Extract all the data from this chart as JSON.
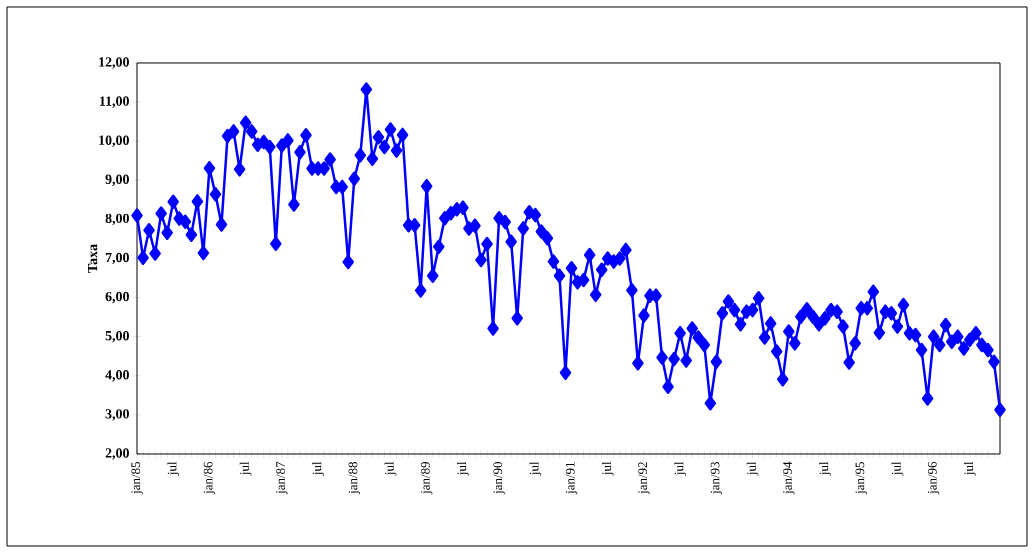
{
  "chart_data": {
    "type": "line",
    "ylabel": "Taxa",
    "color": "#0000ff",
    "marker": "diamond",
    "line_style": "solid",
    "grid": false,
    "ylim": [
      2,
      12
    ],
    "yticks": [
      {
        "value": 2,
        "label": "2,00"
      },
      {
        "value": 3,
        "label": "3,00"
      },
      {
        "value": 4,
        "label": "4,00"
      },
      {
        "value": 5,
        "label": "5,00"
      },
      {
        "value": 6,
        "label": "6,00"
      },
      {
        "value": 7,
        "label": "7,00"
      },
      {
        "value": 8,
        "label": "8,00"
      },
      {
        "value": 9,
        "label": "9,00"
      },
      {
        "value": 10,
        "label": "10,00"
      },
      {
        "value": 11,
        "label": "11,00"
      },
      {
        "value": 12,
        "label": "12,00"
      }
    ],
    "categories": [
      "jan/85",
      null,
      null,
      null,
      null,
      null,
      "jul",
      null,
      null,
      null,
      null,
      null,
      "jan/86",
      null,
      null,
      null,
      null,
      null,
      "jul",
      null,
      null,
      null,
      null,
      null,
      "jan/87",
      null,
      null,
      null,
      null,
      null,
      "jul",
      null,
      null,
      null,
      null,
      null,
      "jan/88",
      null,
      null,
      null,
      null,
      null,
      "jul",
      null,
      null,
      null,
      null,
      null,
      "jan/89",
      null,
      null,
      null,
      null,
      null,
      "jul",
      null,
      null,
      null,
      null,
      null,
      "jan/90",
      null,
      null,
      null,
      null,
      null,
      "jul",
      null,
      null,
      null,
      null,
      null,
      "jan/91",
      null,
      null,
      null,
      null,
      null,
      "jul",
      null,
      null,
      null,
      null,
      null,
      "jan/92",
      null,
      null,
      null,
      null,
      null,
      "jul",
      null,
      null,
      null,
      null,
      null,
      "jan/93",
      null,
      null,
      null,
      null,
      null,
      "jul",
      null,
      null,
      null,
      null,
      null,
      "jan/94",
      null,
      null,
      null,
      null,
      null,
      "jul",
      null,
      null,
      null,
      null,
      null,
      "jan/95",
      null,
      null,
      null,
      null,
      null,
      "jul",
      null,
      null,
      null,
      null,
      null,
      "jan/96",
      null,
      null,
      null,
      null,
      null,
      "jul",
      null,
      null,
      null,
      null,
      null
    ],
    "values": [
      8.1,
      7.02,
      7.72,
      7.13,
      8.15,
      7.66,
      8.45,
      8.02,
      7.94,
      7.61,
      8.46,
      7.14,
      9.31,
      8.64,
      7.87,
      10.13,
      10.25,
      9.28,
      10.47,
      10.25,
      9.91,
      9.98,
      9.85,
      7.38,
      9.89,
      10.02,
      8.38,
      9.72,
      10.15,
      9.3,
      9.3,
      9.3,
      9.53,
      8.83,
      8.83,
      6.91,
      9.04,
      9.64,
      11.32,
      9.55,
      10.1,
      9.85,
      10.3,
      9.76,
      10.16,
      7.85,
      7.85,
      6.18,
      8.85,
      6.56,
      7.3,
      8.03,
      8.16,
      8.26,
      8.3,
      7.77,
      7.84,
      6.96,
      7.37,
      5.21,
      8.03,
      7.93,
      7.43,
      5.47,
      7.77,
      8.18,
      8.11,
      7.69,
      7.52,
      6.92,
      6.56,
      4.08,
      6.75,
      6.39,
      6.45,
      7.09,
      6.07,
      6.71,
      7.0,
      6.92,
      7.0,
      7.22,
      6.19,
      4.32,
      5.54,
      6.05,
      6.05,
      4.47,
      3.72,
      4.43,
      5.09,
      4.39,
      5.21,
      4.98,
      4.79,
      3.3,
      4.36,
      5.6,
      5.9,
      5.68,
      5.32,
      5.64,
      5.68,
      5.98,
      4.98,
      5.34,
      4.62,
      3.91,
      5.13,
      4.83,
      5.51,
      5.7,
      5.51,
      5.32,
      5.47,
      5.68,
      5.64,
      5.26,
      4.34,
      4.83,
      5.73,
      5.73,
      6.15,
      5.1,
      5.64,
      5.6,
      5.26,
      5.81,
      5.09,
      5.04,
      4.66,
      3.42,
      5.0,
      4.79,
      5.3,
      4.87,
      5.0,
      4.7,
      4.92,
      5.09,
      4.79,
      4.66,
      4.36,
      3.13
    ]
  }
}
